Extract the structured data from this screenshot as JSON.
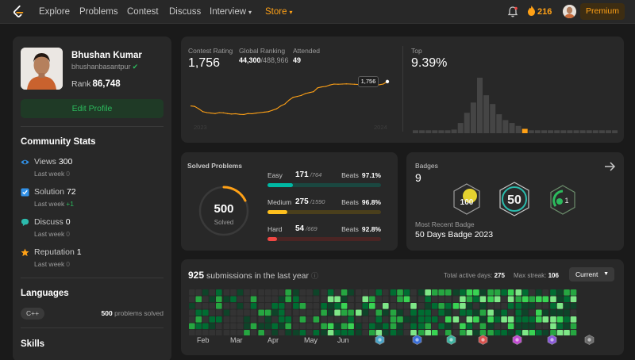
{
  "nav": {
    "links": [
      "Explore",
      "Problems",
      "Contest",
      "Discuss",
      "Interview",
      "Store"
    ],
    "streak_count": "216",
    "premium_label": "Premium"
  },
  "profile": {
    "name": "Bhushan Kumar",
    "username": "bhushanbasantpur",
    "rank_label": "Rank",
    "rank_value": "86,748",
    "edit_label": "Edit Profile"
  },
  "community": {
    "title": "Community Stats",
    "week_label": "Last week",
    "stats": [
      {
        "label": "Views",
        "value": "300",
        "delta": "0"
      },
      {
        "label": "Solution",
        "value": "72",
        "delta": "+1"
      },
      {
        "label": "Discuss",
        "value": "0",
        "delta": "0"
      },
      {
        "label": "Reputation",
        "value": "1",
        "delta": "0"
      }
    ]
  },
  "languages": {
    "title": "Languages",
    "lang": "C++",
    "solved_count": "500",
    "solved_label": "problems solved"
  },
  "skills": {
    "title": "Skills"
  },
  "contest": {
    "rating_label": "Contest Rating",
    "rating": "1,756",
    "ranking_label": "Global Ranking",
    "ranking": "44,300",
    "ranking_total": "/488,966",
    "attended_label": "Attended",
    "attended": "49",
    "year_start": "2023",
    "year_end": "2024",
    "tooltip": "1,756",
    "top_label": "Top",
    "top_pct": "9.39%"
  },
  "chart_data": [
    {
      "type": "line",
      "title": "Contest Rating",
      "x": [
        1,
        2,
        3,
        4,
        5,
        6,
        7,
        8,
        9,
        10,
        11,
        12,
        13,
        14,
        15,
        16,
        17,
        18,
        19,
        20,
        21,
        22,
        23,
        24,
        25,
        26,
        27,
        28,
        29,
        30,
        31,
        32,
        33,
        34,
        35,
        36,
        37,
        38,
        39,
        40,
        41,
        42,
        43,
        44,
        45,
        46,
        47,
        48,
        49
      ],
      "values": [
        1500,
        1495,
        1470,
        1440,
        1430,
        1425,
        1420,
        1430,
        1428,
        1420,
        1415,
        1418,
        1412,
        1410,
        1420,
        1418,
        1425,
        1430,
        1435,
        1440,
        1455,
        1470,
        1500,
        1520,
        1560,
        1590,
        1600,
        1610,
        1630,
        1640,
        1650,
        1690,
        1700,
        1705,
        1720,
        1730,
        1728,
        1730,
        1732,
        1730,
        1728,
        1725,
        1728,
        1726,
        1724,
        1725,
        1722,
        1730,
        1756
      ],
      "xlabel": "",
      "ylabel": ""
    },
    {
      "type": "bar",
      "title": "Top 9.39%",
      "categories": [
        "1",
        "2",
        "3",
        "4",
        "5",
        "6",
        "7",
        "8",
        "9",
        "10",
        "11",
        "12",
        "13",
        "14",
        "15",
        "16",
        "17",
        "18",
        "19",
        "20",
        "21",
        "22",
        "23",
        "24",
        "25",
        "26",
        "27",
        "28",
        "29",
        "30",
        "31",
        "32"
      ],
      "values": [
        4,
        4,
        4,
        4,
        4,
        4,
        5,
        14,
        28,
        42,
        76,
        52,
        40,
        26,
        18,
        14,
        10,
        6,
        4,
        4,
        4,
        4,
        4,
        4,
        4,
        4,
        4,
        4,
        4,
        4,
        4,
        4
      ],
      "highlight_index": 17,
      "colors": {
        "bar": "#454545",
        "highlight": "#ffa116"
      }
    },
    {
      "type": "bar",
      "title": "Solved Problems by Difficulty",
      "categories": [
        "Easy",
        "Medium",
        "Hard"
      ],
      "series": [
        {
          "name": "solved",
          "values": [
            171,
            275,
            54
          ]
        },
        {
          "name": "total",
          "values": [
            764,
            1590,
            669
          ]
        }
      ]
    }
  ],
  "solved": {
    "title": "Solved Problems",
    "total": "500",
    "total_label": "Solved",
    "beats_label": "Beats",
    "items": [
      {
        "label": "Easy",
        "count": "171",
        "total": "/764",
        "beats": "97.1%",
        "color": "#00b8a3",
        "track": "#1a4740",
        "pct": 22.4
      },
      {
        "label": "Medium",
        "count": "275",
        "total": "/1590",
        "beats": "96.8%",
        "color": "#ffc01e",
        "track": "#4a3f1c",
        "pct": 17.3
      },
      {
        "label": "Hard",
        "count": "54",
        "total": "/669",
        "beats": "92.8%",
        "color": "#ef4743",
        "track": "#4a2524",
        "pct": 8.1
      }
    ]
  },
  "badges": {
    "title": "Badges",
    "count": "9",
    "recent_label": "Most Recent Badge",
    "recent_name": "50 Days Badge 2023",
    "badge_texts": [
      "100",
      "50",
      "1"
    ]
  },
  "submissions": {
    "count": "925",
    "label": "submissions in the last year",
    "active_label": "Total active days:",
    "active_days": "275",
    "streak_label": "Max streak:",
    "max_streak": "106",
    "dropdown": "Current",
    "months": [
      "Feb",
      "Mar",
      "Apr",
      "May",
      "Jun"
    ],
    "badge_month_count": 7
  }
}
